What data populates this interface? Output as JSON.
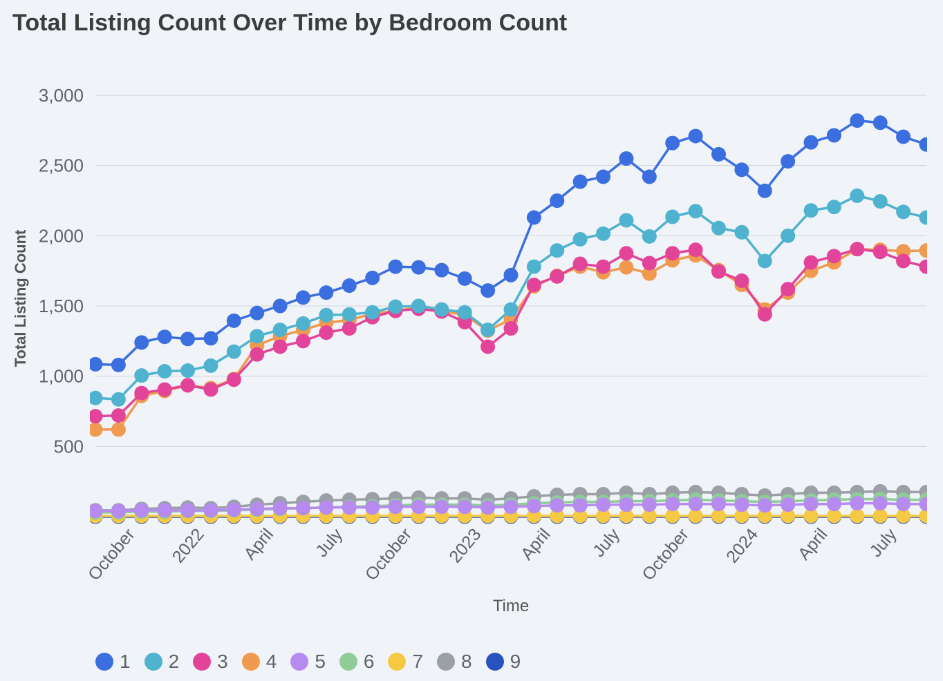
{
  "chart_data": {
    "type": "line",
    "title": "Total Listing Count Over Time by Bedroom Count",
    "xlabel": "Time",
    "ylabel": "Total Listing Count",
    "ylim": [
      0,
      3000
    ],
    "y_ticks": [
      500,
      1000,
      1500,
      2000,
      2500,
      3000
    ],
    "y_tick_labels": [
      "500",
      "1,000",
      "1,500",
      "2,000",
      "2,500",
      "3,000"
    ],
    "x_range": [
      0,
      36
    ],
    "x_ticks": [
      {
        "x": 1.5,
        "label": "October"
      },
      {
        "x": 4.5,
        "label": "2022"
      },
      {
        "x": 7.5,
        "label": "April"
      },
      {
        "x": 10.5,
        "label": "July"
      },
      {
        "x": 13.5,
        "label": "October"
      },
      {
        "x": 16.5,
        "label": "2023"
      },
      {
        "x": 19.5,
        "label": "April"
      },
      {
        "x": 22.5,
        "label": "July"
      },
      {
        "x": 25.5,
        "label": "October"
      },
      {
        "x": 28.5,
        "label": "2024"
      },
      {
        "x": 31.5,
        "label": "April"
      },
      {
        "x": 34.5,
        "label": "July"
      }
    ],
    "x": [
      0,
      1,
      2,
      3,
      4,
      5,
      6,
      7,
      8,
      9,
      10,
      11,
      12,
      13,
      14,
      15,
      16,
      17,
      18,
      19,
      20,
      21,
      22,
      23,
      24,
      25,
      26,
      27,
      28,
      29,
      30,
      31,
      32,
      33,
      34,
      35,
      36
    ],
    "series": [
      {
        "name": "1",
        "color": "#3b6fe0",
        "values": [
          1085,
          1080,
          1240,
          1280,
          1265,
          1270,
          1395,
          1450,
          1500,
          1560,
          1595,
          1645,
          1700,
          1780,
          1775,
          1755,
          1695,
          1610,
          1720,
          2130,
          2250,
          2385,
          2420,
          2550,
          2420,
          2660,
          2710,
          2580,
          2470,
          2320,
          2530,
          2665,
          2715,
          2820,
          2805,
          2705,
          2650
        ]
      },
      {
        "name": "2",
        "color": "#4fb3cf",
        "values": [
          845,
          835,
          1005,
          1035,
          1040,
          1075,
          1175,
          1285,
          1330,
          1375,
          1435,
          1440,
          1455,
          1495,
          1500,
          1475,
          1455,
          1330,
          1475,
          1780,
          1895,
          1975,
          2015,
          2110,
          1995,
          2135,
          2175,
          2055,
          2025,
          1820,
          2000,
          2180,
          2205,
          2285,
          2245,
          2170,
          2130
        ]
      },
      {
        "name": "3",
        "color": "#e2449a",
        "values": [
          715,
          720,
          880,
          905,
          935,
          905,
          975,
          1155,
          1210,
          1250,
          1310,
          1340,
          1420,
          1465,
          1480,
          1460,
          1385,
          1210,
          1340,
          1650,
          1710,
          1800,
          1780,
          1875,
          1805,
          1875,
          1900,
          1745,
          1680,
          1440,
          1620,
          1810,
          1855,
          1905,
          1885,
          1820,
          1780
        ]
      },
      {
        "name": "4",
        "color": "#f09a4f",
        "values": [
          620,
          620,
          860,
          895,
          935,
          915,
          980,
          1220,
          1285,
          1330,
          1380,
          1400,
          1445,
          1465,
          1490,
          1465,
          1435,
          1325,
          1405,
          1640,
          1715,
          1780,
          1740,
          1775,
          1730,
          1825,
          1860,
          1755,
          1650,
          1475,
          1595,
          1750,
          1810,
          1905,
          1900,
          1890,
          1895
        ]
      },
      {
        "name": "5",
        "color": "#b78af0",
        "values": [
          40,
          40,
          45,
          45,
          45,
          45,
          50,
          55,
          60,
          60,
          65,
          65,
          65,
          70,
          70,
          70,
          70,
          65,
          70,
          75,
          80,
          80,
          85,
          85,
          85,
          90,
          90,
          90,
          85,
          80,
          85,
          90,
          90,
          95,
          95,
          90,
          90
        ]
      },
      {
        "name": "6",
        "color": "#8fcc98",
        "values": [
          30,
          30,
          35,
          35,
          40,
          40,
          45,
          50,
          55,
          60,
          65,
          70,
          75,
          80,
          85,
          85,
          85,
          80,
          85,
          95,
          100,
          105,
          105,
          110,
          110,
          115,
          120,
          115,
          110,
          105,
          110,
          115,
          120,
          125,
          125,
          120,
          120
        ]
      },
      {
        "name": "7",
        "color": "#f6c945",
        "values": [
          5,
          5,
          5,
          5,
          5,
          5,
          5,
          5,
          5,
          5,
          5,
          5,
          5,
          5,
          5,
          5,
          5,
          5,
          5,
          5,
          5,
          5,
          5,
          5,
          5,
          5,
          5,
          5,
          5,
          5,
          5,
          5,
          5,
          5,
          5,
          5,
          5
        ]
      },
      {
        "name": "8",
        "color": "#9aa0a6",
        "values": [
          45,
          45,
          55,
          60,
          65,
          60,
          70,
          85,
          95,
          105,
          115,
          120,
          125,
          130,
          135,
          130,
          130,
          120,
          130,
          145,
          155,
          160,
          160,
          170,
          160,
          170,
          175,
          170,
          160,
          150,
          160,
          170,
          170,
          175,
          180,
          175,
          175
        ]
      },
      {
        "name": "9",
        "color": "#2a52be",
        "values": [
          0,
          0,
          0,
          0,
          0,
          0,
          0,
          0,
          0,
          0,
          0,
          0,
          0,
          0,
          0,
          0,
          0,
          0,
          0,
          0,
          0,
          0,
          0,
          0,
          0,
          0,
          0,
          0,
          0,
          0,
          0,
          0,
          0,
          0,
          0,
          0,
          0
        ]
      }
    ]
  }
}
